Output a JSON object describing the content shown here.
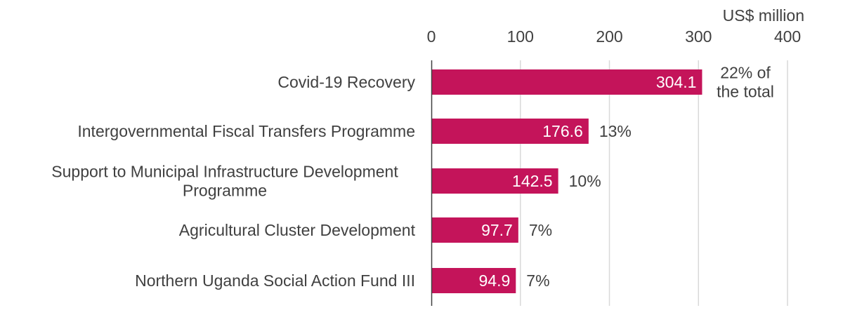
{
  "chart_data": {
    "type": "bar",
    "orientation": "horizontal",
    "title": "",
    "unit_label": "US$ million",
    "xlim": [
      0,
      400
    ],
    "x_ticks": [
      0,
      100,
      200,
      300,
      400
    ],
    "x_tick_labels": [
      "0",
      "100",
      "200",
      "300",
      "400"
    ],
    "x_axis_position": "top",
    "grid": "vertical",
    "legend": "none",
    "categories": [
      [
        "Covid-19  Recovery"
      ],
      [
        "Intergovernmental Fiscal Transfers Programme"
      ],
      [
        "Support to Municipal Infrastructure Development",
        "Programme"
      ],
      [
        "Agricultural Cluster Development"
      ],
      [
        "Northern Uganda Social Action Fund III"
      ]
    ],
    "values": [
      304.1,
      176.6,
      142.5,
      97.7,
      94.9
    ],
    "value_labels": [
      "304.1",
      "176.6",
      "142.5",
      "97.7",
      "94.9"
    ],
    "share_labels": [
      [
        "22% of",
        "the total"
      ],
      [
        "13%"
      ],
      [
        "10%"
      ],
      [
        "7%"
      ],
      [
        "7%"
      ]
    ],
    "colors": {
      "bar": "#c4145a",
      "grid": "#d9d9d9",
      "axis": "#404040",
      "text": "#404040",
      "value_text": "#ffffff"
    }
  }
}
